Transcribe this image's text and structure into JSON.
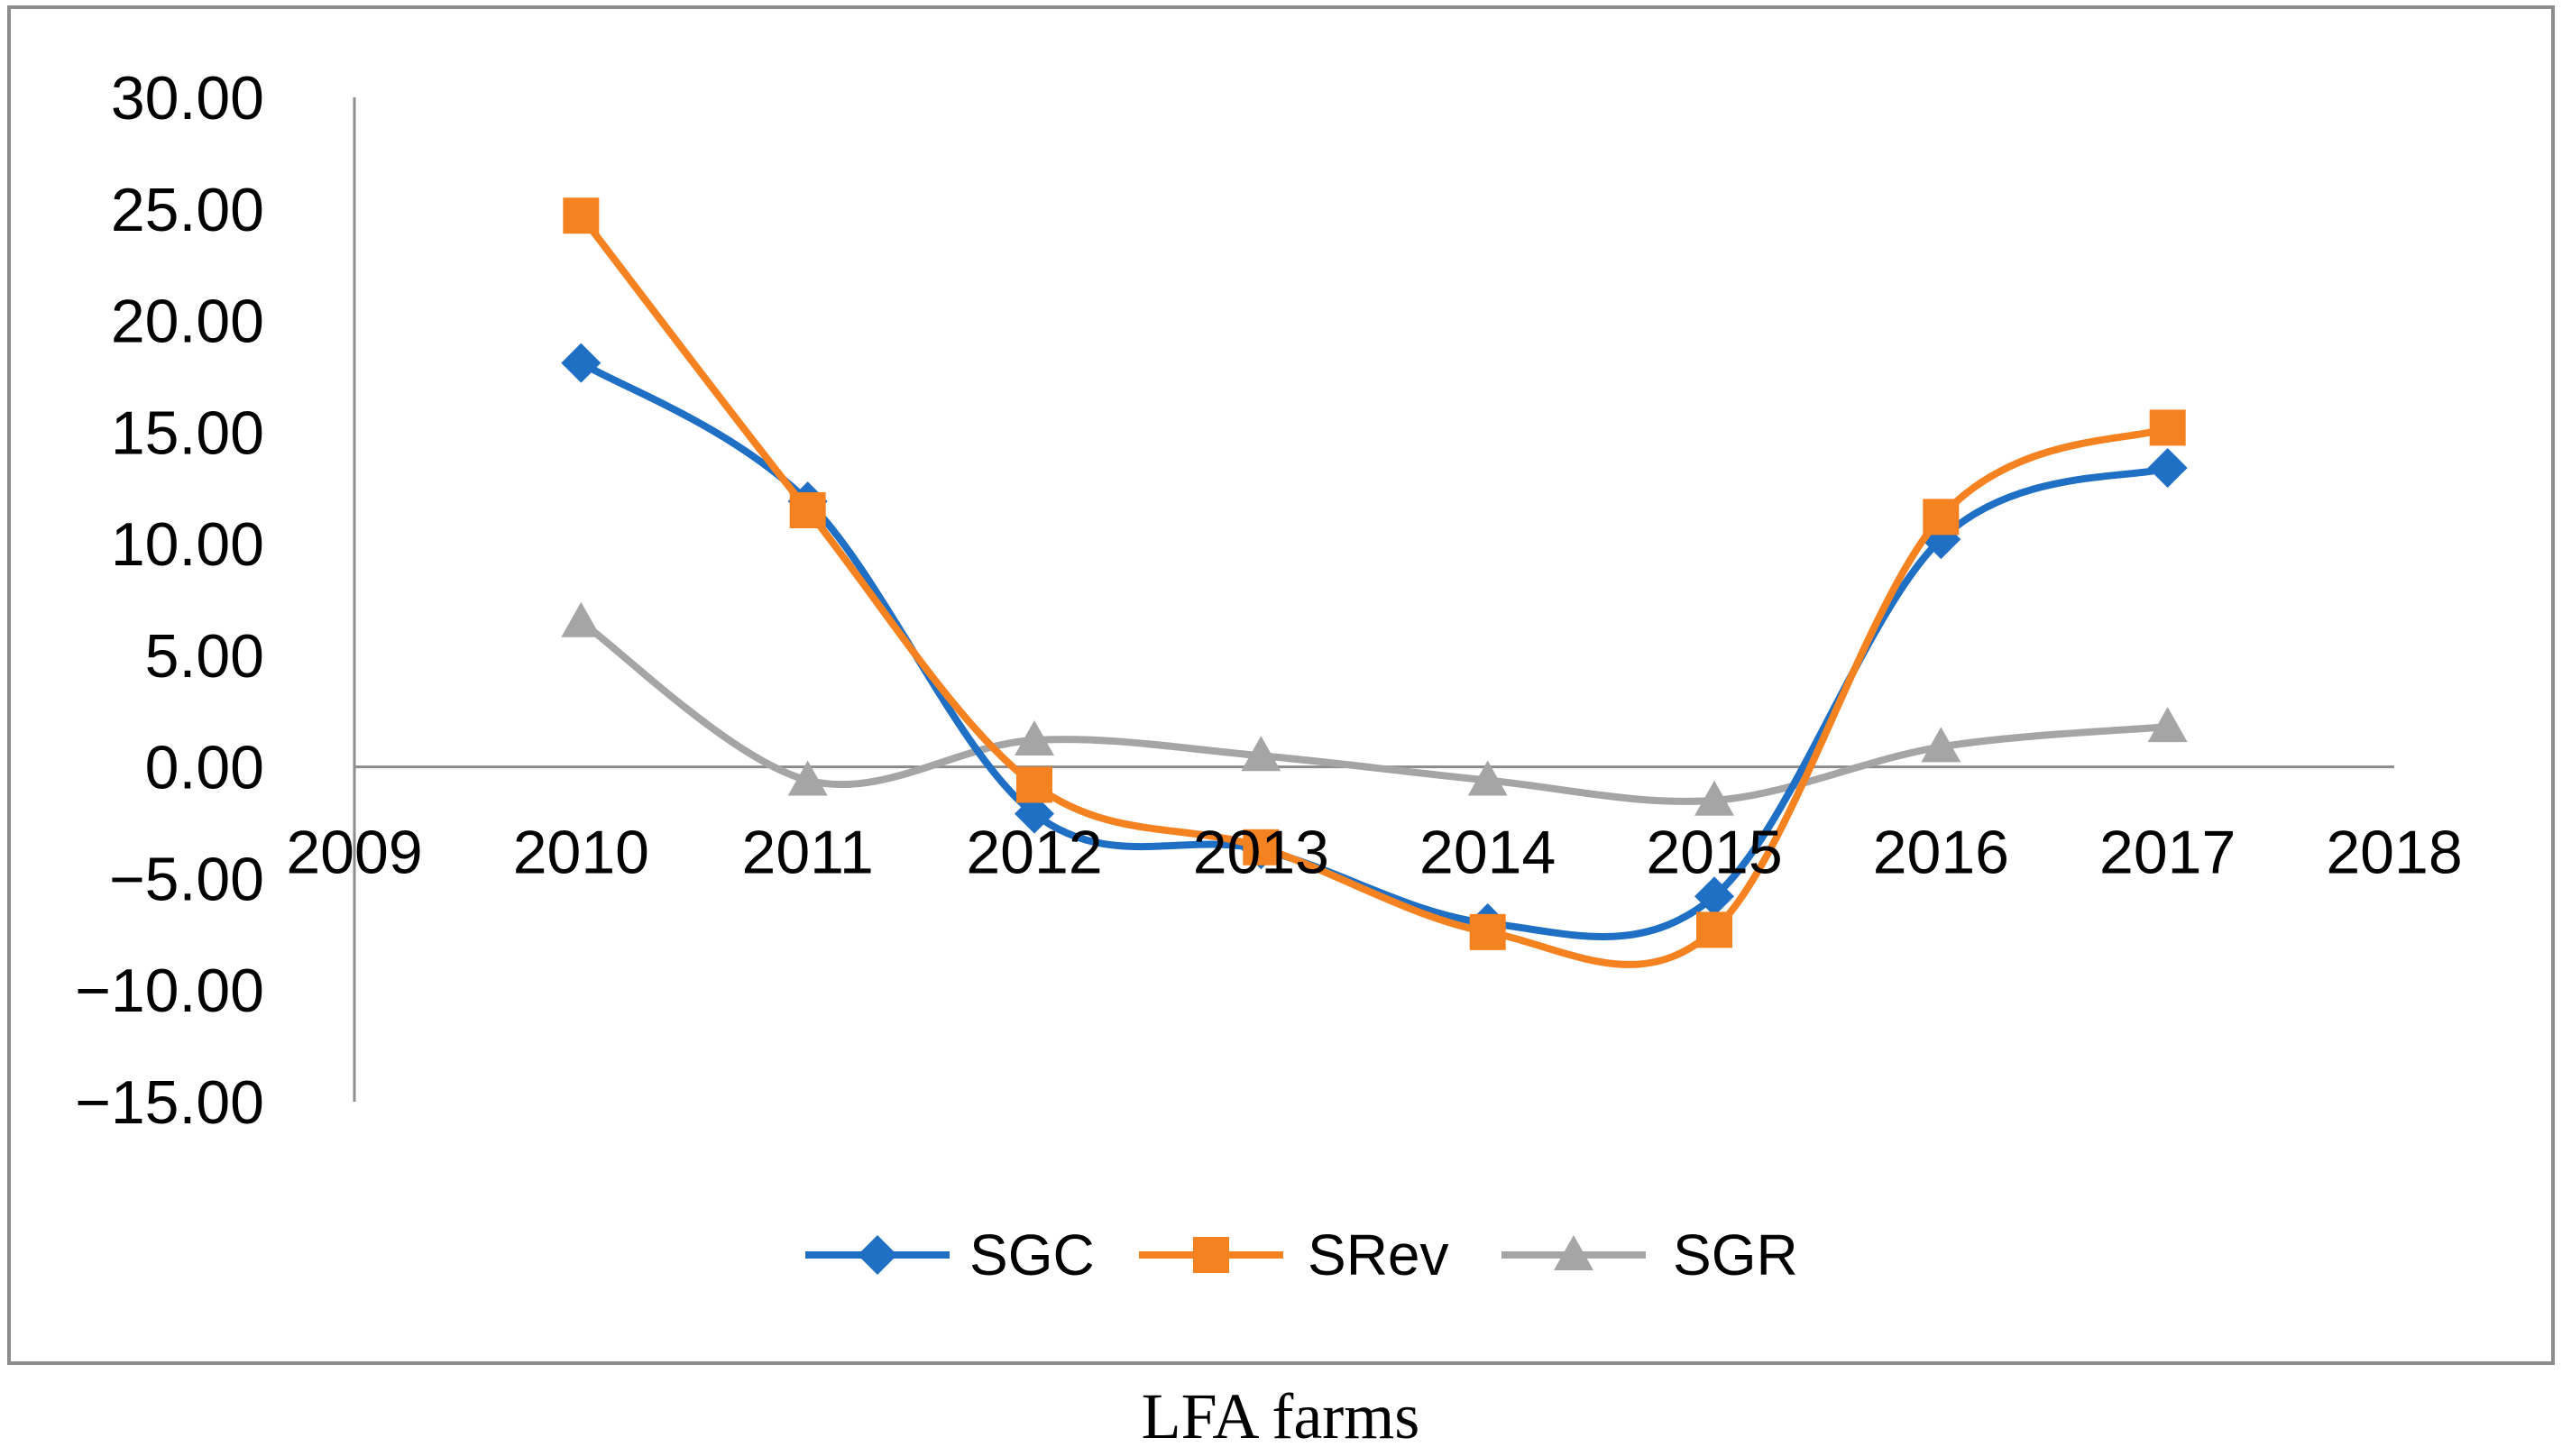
{
  "chart_data": {
    "type": "line",
    "smooth": true,
    "x": [
      2010,
      2011,
      2012,
      2013,
      2014,
      2015,
      2016,
      2017
    ],
    "xlim": [
      2009,
      2018
    ],
    "ylim": [
      -15,
      30
    ],
    "x_ticks": [
      "2009",
      "2010",
      "2011",
      "2012",
      "2013",
      "2014",
      "2015",
      "2016",
      "2017",
      "2018"
    ],
    "y_ticks": [
      "30.00",
      "25.00",
      "20.00",
      "15.00",
      "10.00",
      "5.00",
      "0.00",
      "−5.00",
      "−10.00",
      "−15.00"
    ],
    "series": [
      {
        "name": "SGC",
        "color": "#1f6fc4",
        "marker": "diamond",
        "values": [
          18.1,
          11.9,
          -2.1,
          -3.7,
          -7.0,
          -5.8,
          10.2,
          13.4
        ]
      },
      {
        "name": "SRev",
        "color": "#f58220",
        "marker": "square",
        "values": [
          24.7,
          11.5,
          -0.8,
          -3.6,
          -7.4,
          -7.3,
          11.2,
          15.2
        ]
      },
      {
        "name": "SGR",
        "color": "#a5a5a5",
        "marker": "triangle",
        "values": [
          6.5,
          -0.6,
          1.2,
          0.5,
          -0.6,
          -1.5,
          0.9,
          1.8
        ]
      }
    ],
    "legend_position": "bottom",
    "grid": false
  },
  "caption": "LFA farms"
}
